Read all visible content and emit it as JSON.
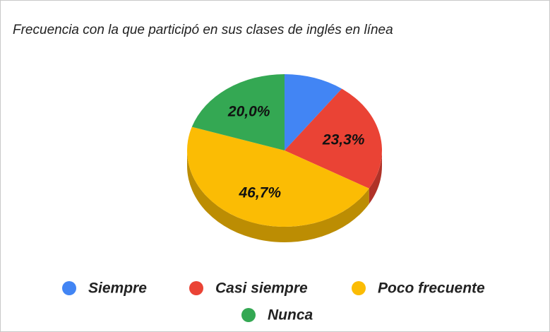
{
  "chart_data": {
    "type": "pie",
    "title": "Frecuencia con la que participó en sus clases de inglés en línea",
    "categories": [
      "Siempre",
      "Casi siempre",
      "Poco frecuente",
      "Nunca"
    ],
    "values": [
      10,
      23.3,
      46.7,
      20
    ],
    "value_labels": [
      null,
      "23,3%",
      "46,7%",
      "20,0%"
    ],
    "colors": [
      "#4285f4",
      "#ea4335",
      "#fbbc04",
      "#34a853"
    ],
    "legend": "bottom"
  }
}
